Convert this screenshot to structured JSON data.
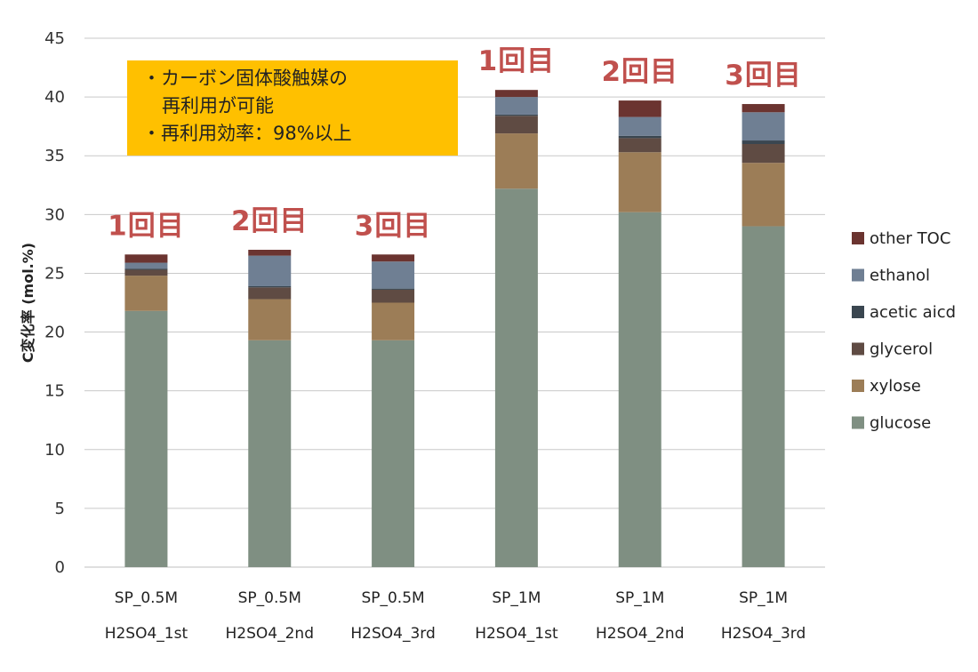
{
  "chart_data": {
    "type": "bar",
    "stacked": true,
    "ylabel": "C変化率 (mol.%)",
    "ylim": [
      0,
      45
    ],
    "yticks": [
      0,
      5,
      10,
      15,
      20,
      25,
      30,
      35,
      40,
      45
    ],
    "grid": true,
    "legend_position": "right",
    "categories": [
      [
        "SP_0.5M",
        "H2SO4_1st"
      ],
      [
        "SP_0.5M",
        "H2SO4_2nd"
      ],
      [
        "SP_0.5M",
        "H2SO4_3rd"
      ],
      [
        "SP_1M",
        "H2SO4_1st"
      ],
      [
        "SP_1M",
        "H2SO4_2nd"
      ],
      [
        "SP_1M",
        "H2SO4_3rd"
      ]
    ],
    "series": [
      {
        "name": "glucose",
        "color": "#7f8f82",
        "values": [
          21.8,
          19.3,
          19.3,
          32.2,
          30.2,
          29.0
        ]
      },
      {
        "name": "xylose",
        "color": "#9c7d57",
        "values": [
          3.0,
          3.5,
          3.2,
          4.7,
          5.1,
          5.4
        ]
      },
      {
        "name": "glycerol",
        "color": "#5f4b43",
        "values": [
          0.5,
          1.0,
          1.1,
          1.5,
          1.2,
          1.6
        ]
      },
      {
        "name": "acetic aicd",
        "color": "#3a4650",
        "values": [
          0.1,
          0.1,
          0.1,
          0.1,
          0.2,
          0.3
        ]
      },
      {
        "name": "ethanol",
        "color": "#6f7f93",
        "values": [
          0.5,
          2.6,
          2.3,
          1.5,
          1.6,
          2.4
        ]
      },
      {
        "name": "other TOC",
        "color": "#6b3430",
        "values": [
          0.7,
          0.5,
          0.6,
          0.6,
          1.4,
          0.7
        ]
      }
    ],
    "run_labels": [
      "1回目",
      "2回目",
      "3回目",
      "1回目",
      "2回目",
      "3回目"
    ],
    "callout": {
      "lines": [
        "・カーボン固体酸触媒の",
        "再利用が可能",
        "・再利用効率：98%以上"
      ],
      "color": "#ffc000"
    },
    "colors": {
      "grid": "#c9c9c9",
      "run_label": "#c0504d"
    }
  }
}
